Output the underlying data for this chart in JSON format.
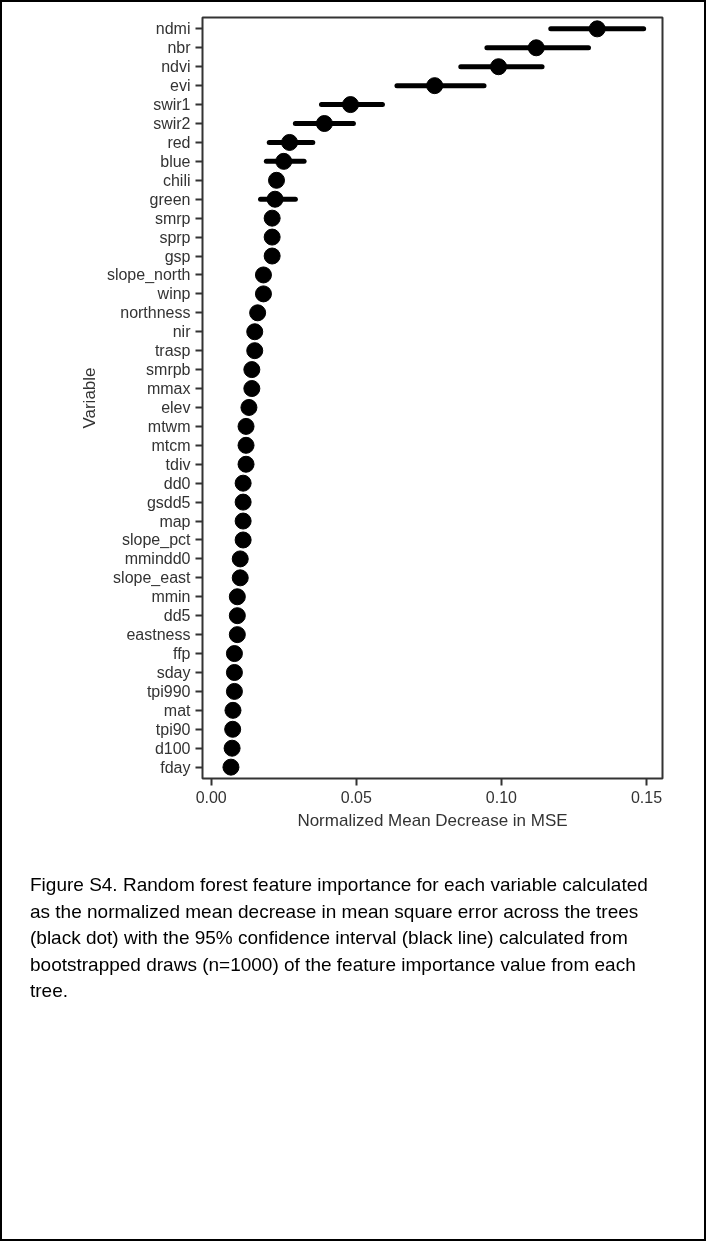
{
  "chart_data": {
    "type": "scatter",
    "orientation": "horizontal",
    "marker": "circle",
    "color": "#000000",
    "grid": false,
    "xlabel": "Normalized Mean Decrease in MSE",
    "ylabel": "Variable",
    "categories": [
      "ndmi",
      "nbr",
      "ndvi",
      "evi",
      "swir1",
      "swir2",
      "red",
      "blue",
      "chili",
      "green",
      "smrp",
      "sprp",
      "gsp",
      "slope_north",
      "winp",
      "northness",
      "nir",
      "trasp",
      "smrpb",
      "mmax",
      "elev",
      "mtwm",
      "mtcm",
      "tdiv",
      "dd0",
      "gsdd5",
      "map",
      "slope_pct",
      "mmindd0",
      "slope_east",
      "mmin",
      "dd5",
      "eastness",
      "ffp",
      "sday",
      "tpi990",
      "mat",
      "tpi90",
      "d100",
      "fday"
    ],
    "values": [
      0.133,
      0.112,
      0.099,
      0.077,
      0.048,
      0.039,
      0.027,
      0.025,
      0.0225,
      0.022,
      0.021,
      0.021,
      0.021,
      0.018,
      0.018,
      0.016,
      0.015,
      0.015,
      0.014,
      0.014,
      0.013,
      0.012,
      0.012,
      0.012,
      0.011,
      0.011,
      0.011,
      0.011,
      0.01,
      0.01,
      0.009,
      0.009,
      0.009,
      0.008,
      0.008,
      0.008,
      0.0075,
      0.0074,
      0.0072,
      0.0068
    ],
    "errors": [
      [
        0.117,
        0.149
      ],
      [
        0.095,
        0.13
      ],
      [
        0.086,
        0.114
      ],
      [
        0.064,
        0.094
      ],
      [
        0.038,
        0.059
      ],
      [
        0.029,
        0.049
      ],
      [
        0.02,
        0.035
      ],
      [
        0.019,
        0.032
      ],
      null,
      [
        0.017,
        0.029
      ],
      null,
      null,
      null,
      null,
      null,
      null,
      null,
      null,
      null,
      null,
      null,
      null,
      null,
      null,
      null,
      null,
      null,
      null,
      null,
      null,
      null,
      null,
      null,
      null,
      null,
      null,
      null,
      null,
      null,
      null
    ],
    "xlim": [
      -0.003,
      0.1555
    ],
    "xticks": [
      {
        "value": 0,
        "label": "0.00"
      },
      {
        "value": 0.05,
        "label": "0.05"
      },
      {
        "value": 0.1,
        "label": "0.10"
      },
      {
        "value": 0.15,
        "label": "0.15"
      }
    ],
    "annotations": [
      "Figure S4. Random forest feature importance for each variable calculated as the normalized mean decrease in mean square error across the trees (black dot) with the 95% confidence interval (black line) calculated from bootstrapped draws (n=1000) of the feature importance value from each tree."
    ]
  }
}
